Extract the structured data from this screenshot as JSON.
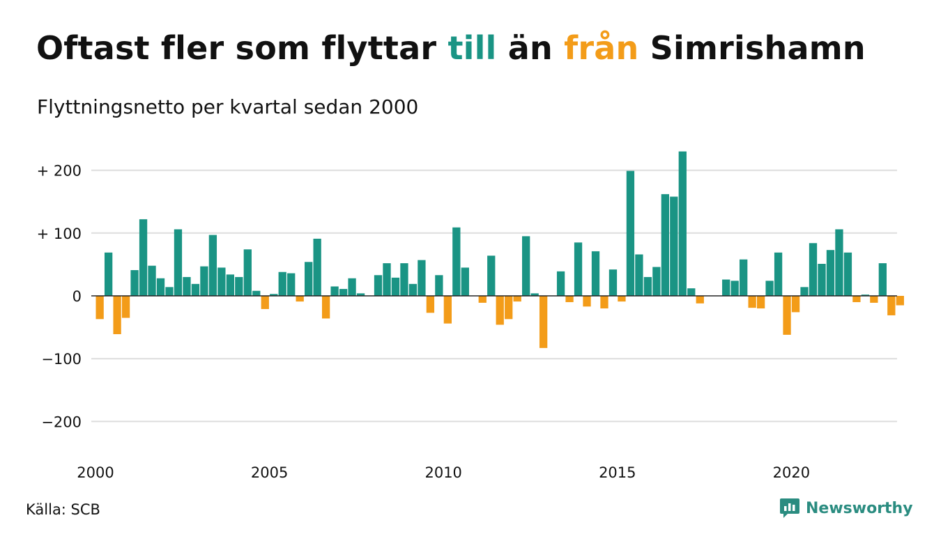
{
  "title": {
    "part1": "Oftast fler som flyttar ",
    "highlight_to": "till",
    "part2": " än ",
    "highlight_from": "från",
    "part3": " Simrishamn"
  },
  "subtitle": "Flyttningsnetto per kvartal sedan 2000",
  "source": "Källa: SCB",
  "brand": "Newsworthy",
  "colors": {
    "positive": "#1a9484",
    "negative": "#f39c19",
    "grid": "#dddddd",
    "brand": "#2a8c80"
  },
  "chart_data": {
    "type": "bar",
    "title": "Oftast fler som flyttar till än från Simrishamn",
    "subtitle": "Flyttningsnetto per kvartal sedan 2000",
    "x_start": "2000 Q1",
    "x_tick_labels": [
      "2000",
      "2005",
      "2010",
      "2015",
      "2020"
    ],
    "y_ticks": [
      200,
      100,
      0,
      -100,
      -200
    ],
    "y_tick_labels": [
      "+ 200",
      "+ 100",
      "0",
      "−100",
      "−200"
    ],
    "ylim": [
      -230,
      235
    ],
    "grid": true,
    "legend": "none",
    "series": [
      {
        "values": [
          -37,
          69,
          -61,
          -35,
          41,
          122,
          48,
          28,
          14,
          106,
          30,
          19,
          47,
          97,
          45,
          34,
          30,
          74,
          8,
          -21,
          3,
          38,
          36,
          -9,
          54,
          91,
          -36,
          15,
          11,
          28,
          4,
          0,
          33,
          52,
          29,
          52,
          19,
          57,
          -27,
          33,
          -44,
          109,
          45,
          0,
          -11,
          64,
          -46,
          -37,
          -9,
          95,
          4,
          -83,
          0,
          39,
          -10,
          85,
          -17,
          71,
          -20,
          42,
          -9,
          199,
          66,
          30,
          46,
          162,
          158,
          230,
          12,
          -12,
          0,
          0,
          26,
          24,
          58,
          -19,
          -20,
          24,
          69,
          -62,
          -26,
          14,
          84,
          51,
          73,
          106,
          69,
          -10,
          2,
          -11,
          52,
          -31,
          -15
        ]
      }
    ]
  }
}
